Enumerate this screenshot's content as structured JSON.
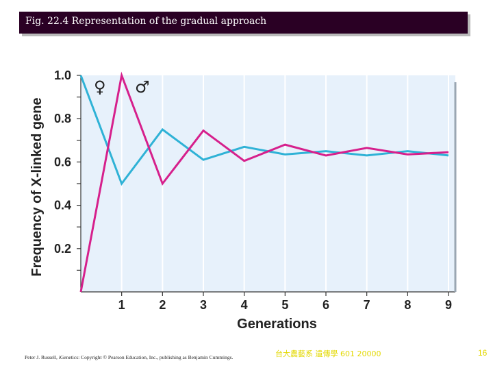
{
  "slide": {
    "title": "Fig. 22.4 Representation of the gradual approach",
    "footer_credit": "Peter J. Russell, iGenetics: Copyright © Pearson Education, Inc., publishing as Benjamin Cummings.",
    "footer_course": "台大農藝系 遺傳學 601 20000",
    "page_number": "16"
  },
  "colors": {
    "title_bar": "#2a0024",
    "plot_bg": "#e7f1fb",
    "female_line": "#2fb2d6",
    "male_line": "#d6208c",
    "footer_text": "#e3d800"
  },
  "chart_data": {
    "type": "line",
    "title": "",
    "xlabel": "Generations",
    "ylabel": "Frequency of X-linked gene",
    "xlim": [
      0,
      9
    ],
    "ylim": [
      0,
      1.0
    ],
    "x_ticks": [
      "1",
      "2",
      "3",
      "4",
      "5",
      "6",
      "7",
      "8",
      "9"
    ],
    "y_ticks": [
      "1.0",
      "0.8",
      "0.6",
      "0.4",
      "0.2"
    ],
    "legend_symbols": [
      "♀",
      "♂"
    ],
    "x": [
      0,
      1,
      2,
      3,
      4,
      5,
      6,
      7,
      8,
      9
    ],
    "series": [
      {
        "name": "♀",
        "color_key": "female_line",
        "values": [
          1.0,
          0.5,
          0.75,
          0.61,
          0.67,
          0.635,
          0.65,
          0.63,
          0.65,
          0.63
        ]
      },
      {
        "name": "♂",
        "color_key": "male_line",
        "values": [
          0.0,
          1.0,
          0.5,
          0.745,
          0.605,
          0.68,
          0.63,
          0.665,
          0.635,
          0.645
        ]
      }
    ]
  }
}
